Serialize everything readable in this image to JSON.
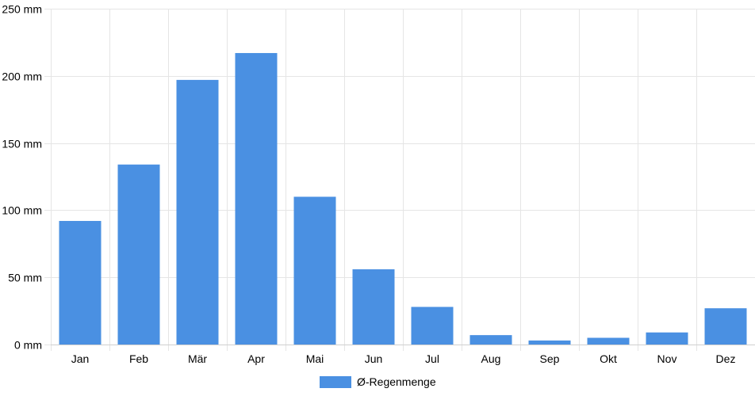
{
  "chart_data": {
    "type": "bar",
    "categories": [
      "Jan",
      "Feb",
      "Mär",
      "Apr",
      "Mai",
      "Jun",
      "Jul",
      "Aug",
      "Sep",
      "Okt",
      "Nov",
      "Dez"
    ],
    "series": [
      {
        "name": "Ø-Regenmenge",
        "values": [
          92,
          134,
          197,
          217,
          110,
          56,
          28,
          7,
          3,
          5,
          9,
          27
        ],
        "color": "#4a90e2"
      }
    ],
    "y_ticks": [
      "0 mm",
      "50 mm",
      "100 mm",
      "150 mm",
      "200 mm",
      "250 mm"
    ],
    "ylim": [
      0,
      250
    ],
    "y_unit": "mm",
    "grid": true,
    "legend_position": "bottom-center"
  }
}
